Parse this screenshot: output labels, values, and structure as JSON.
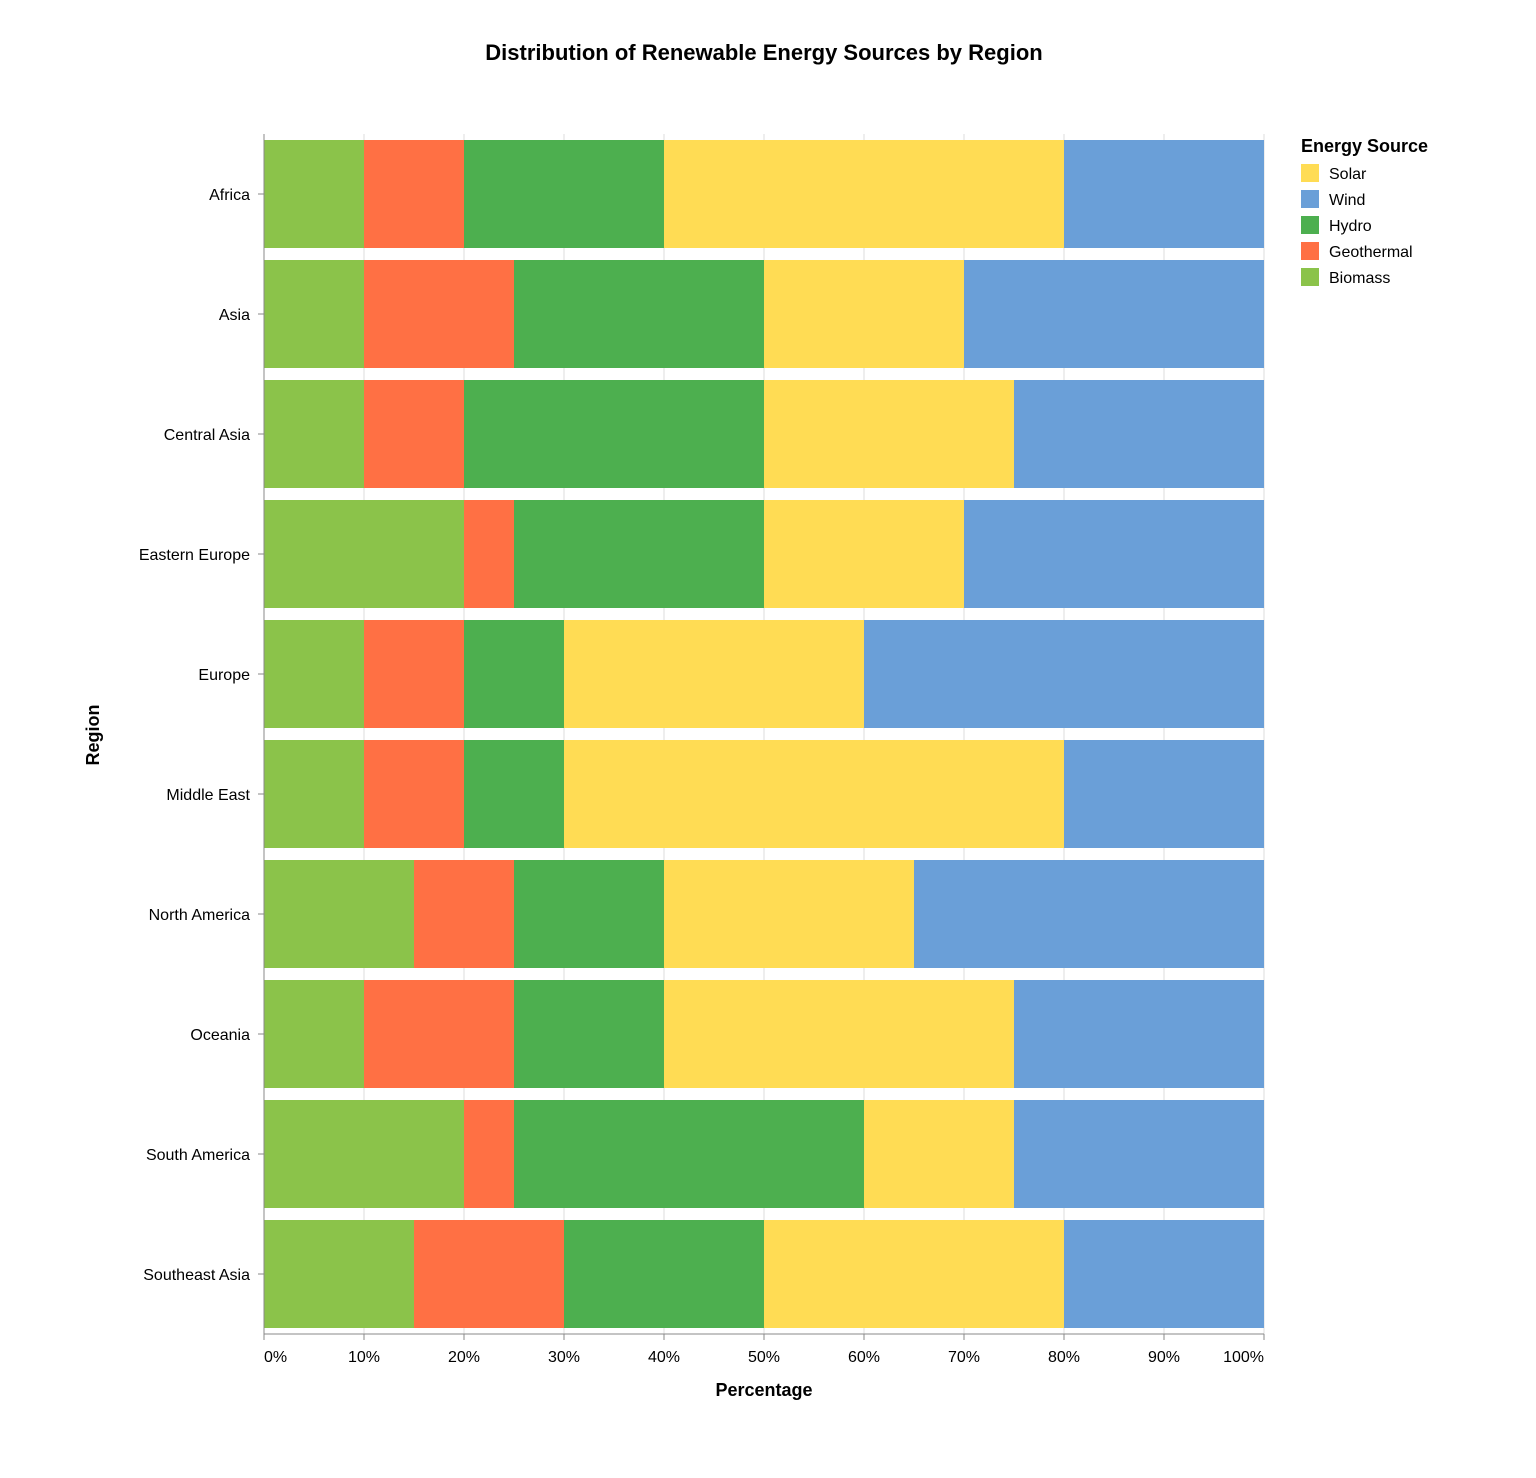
{
  "chart_data": {
    "type": "bar",
    "orientation": "horizontal",
    "stacked": true,
    "title": "Distribution of Renewable Energy Sources by Region",
    "xlabel": "Percentage",
    "ylabel": "Region",
    "xlim": [
      0,
      100
    ],
    "x_ticks": [
      "0%",
      "10%",
      "20%",
      "30%",
      "40%",
      "50%",
      "60%",
      "70%",
      "80%",
      "90%",
      "100%"
    ],
    "grid": true,
    "legend": {
      "title": "Energy Source",
      "placement": "top-right",
      "entries": [
        "Solar",
        "Wind",
        "Hydro",
        "Geothermal",
        "Biomass"
      ]
    },
    "categories": [
      "Africa",
      "Asia",
      "Central Asia",
      "Eastern Europe",
      "Europe",
      "Middle East",
      "North America",
      "Oceania",
      "South America",
      "Southeast Asia"
    ],
    "stack_order": [
      "Biomass",
      "Geothermal",
      "Hydro",
      "Solar",
      "Wind"
    ],
    "series": [
      {
        "name": "Solar",
        "color": "#FFDC54",
        "values": [
          40,
          20,
          25,
          20,
          30,
          50,
          25,
          35,
          15,
          30
        ]
      },
      {
        "name": "Wind",
        "color": "#6A9FD8",
        "values": [
          20,
          30,
          25,
          30,
          40,
          20,
          35,
          25,
          25,
          20
        ]
      },
      {
        "name": "Hydro",
        "color": "#4DAF4F",
        "values": [
          20,
          25,
          30,
          25,
          10,
          10,
          15,
          15,
          35,
          20
        ]
      },
      {
        "name": "Geothermal",
        "color": "#FF7044",
        "values": [
          10,
          15,
          10,
          5,
          10,
          10,
          10,
          15,
          5,
          15
        ]
      },
      {
        "name": "Biomass",
        "color": "#8BC34A",
        "values": [
          10,
          10,
          10,
          20,
          10,
          10,
          15,
          10,
          20,
          15
        ]
      }
    ]
  }
}
